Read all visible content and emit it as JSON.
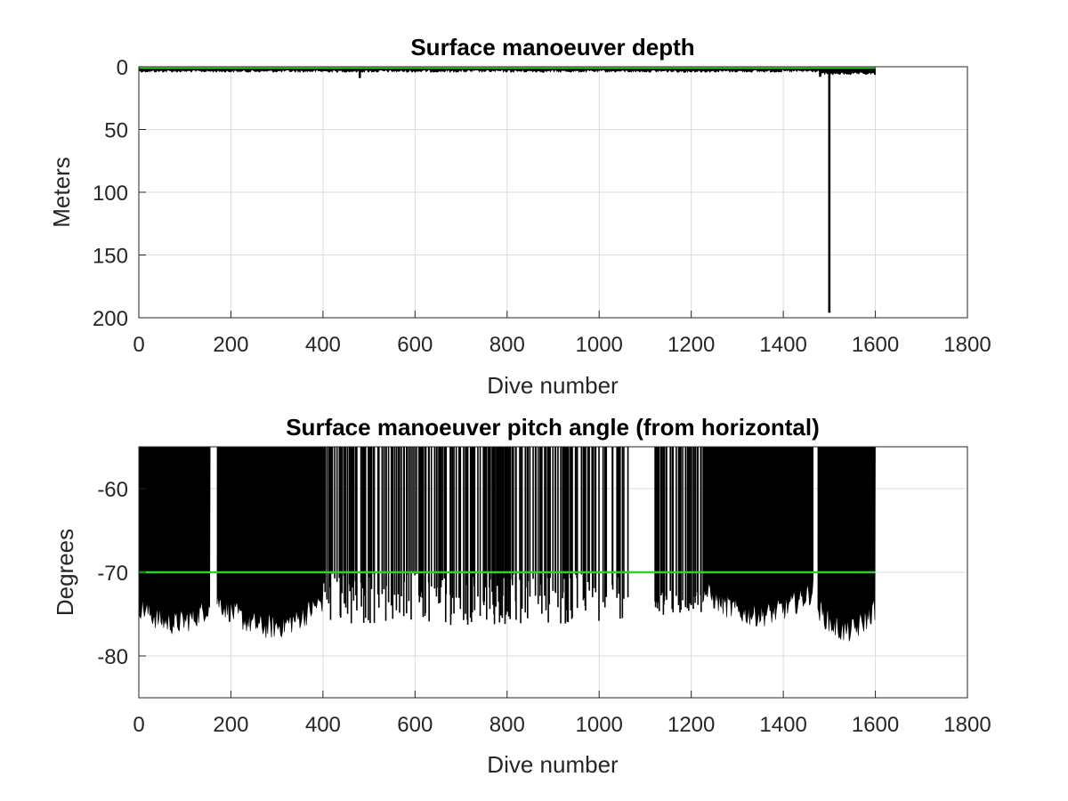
{
  "chart_data": [
    {
      "type": "bar",
      "title": "Surface manoeuver depth",
      "xlabel": "Dive number",
      "ylabel": "Meters",
      "xlim": [
        0,
        1800
      ],
      "ylim": [
        0,
        200
      ],
      "y_reversed": true,
      "grid": true,
      "xticks": [
        "0",
        "200",
        "400",
        "600",
        "800",
        "1000",
        "1200",
        "1400",
        "1600",
        "1800"
      ],
      "yticks": [
        "0",
        "50",
        "100",
        "150",
        "200"
      ],
      "series_color": "#000000",
      "reference_line": {
        "y": 0,
        "color": "#33cc33"
      },
      "n_dives": 1600,
      "typical_depth_m": 3,
      "notable": [
        {
          "dive": 480,
          "depth": 9
        },
        {
          "dive": 1480,
          "depth": 8
        },
        {
          "dive": 1500,
          "depth": 196
        }
      ]
    },
    {
      "type": "bar",
      "title": "Surface manoeuver pitch angle (from horizontal)",
      "xlabel": "Dive number",
      "ylabel": "Degrees",
      "xlim": [
        0,
        1800
      ],
      "ylim": [
        -85,
        -55
      ],
      "grid": true,
      "xticks": [
        "0",
        "200",
        "400",
        "600",
        "800",
        "1000",
        "1200",
        "1400",
        "1600",
        "1800"
      ],
      "yticks": [
        "-60",
        "-70",
        "-80"
      ],
      "series_color": "#000000",
      "reference_line": {
        "y": -70,
        "color": "#33cc33"
      },
      "segments": [
        {
          "x": [
            0,
            155
          ],
          "min_pitch": [
            -73,
            -76
          ]
        },
        {
          "x": [
            170,
            400
          ],
          "min_pitch": [
            -72,
            -76.5
          ]
        },
        {
          "x": [
            400,
            1065
          ],
          "min_pitch": [
            -70,
            -77
          ],
          "pattern": "sparse spikes"
        },
        {
          "x": [
            1120,
            1225
          ],
          "min_pitch": [
            -72,
            -75.5
          ],
          "pattern": "sparse spikes"
        },
        {
          "x": [
            1225,
            1465
          ],
          "min_pitch": [
            -71,
            -75
          ]
        },
        {
          "x": [
            1475,
            1600
          ],
          "min_pitch": [
            -73,
            -77
          ]
        }
      ]
    }
  ]
}
